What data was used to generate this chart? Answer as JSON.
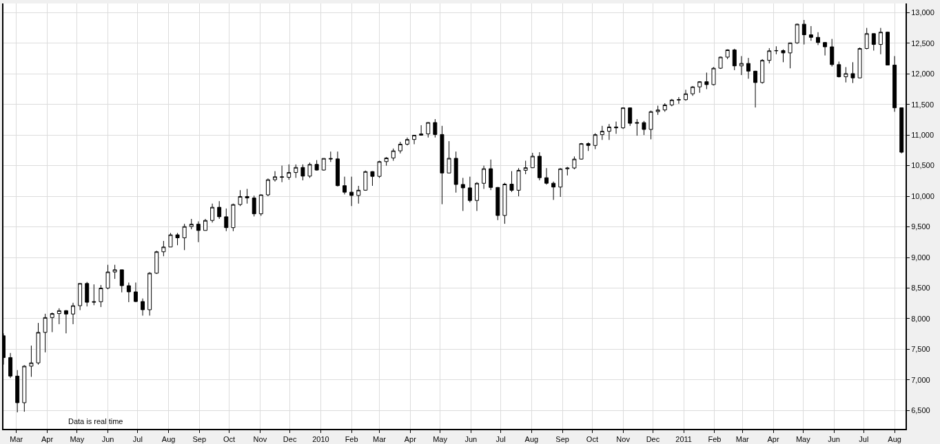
{
  "chart_data": {
    "type": "candlestick",
    "x": [
      "2009-02-16",
      "2009-02-23",
      "2009-03-02",
      "2009-03-09",
      "2009-03-16",
      "2009-03-23",
      "2009-03-30",
      "2009-04-06",
      "2009-04-13",
      "2009-04-20",
      "2009-04-27",
      "2009-05-04",
      "2009-05-11",
      "2009-05-18",
      "2009-05-25",
      "2009-06-01",
      "2009-06-08",
      "2009-06-15",
      "2009-06-22",
      "2009-06-29",
      "2009-07-06",
      "2009-07-13",
      "2009-07-20",
      "2009-07-27",
      "2009-08-03",
      "2009-08-10",
      "2009-08-17",
      "2009-08-24",
      "2009-08-31",
      "2009-09-07",
      "2009-09-14",
      "2009-09-21",
      "2009-09-28",
      "2009-10-05",
      "2009-10-12",
      "2009-10-19",
      "2009-10-26",
      "2009-11-02",
      "2009-11-09",
      "2009-11-16",
      "2009-11-23",
      "2009-11-30",
      "2009-12-07",
      "2009-12-14",
      "2009-12-21",
      "2009-12-28",
      "2010-01-04",
      "2010-01-11",
      "2010-01-18",
      "2010-01-25",
      "2010-02-01",
      "2010-02-08",
      "2010-02-15",
      "2010-02-22",
      "2010-03-01",
      "2010-03-08",
      "2010-03-15",
      "2010-03-22",
      "2010-03-29",
      "2010-04-05",
      "2010-04-12",
      "2010-04-19",
      "2010-04-26",
      "2010-05-03",
      "2010-05-10",
      "2010-05-17",
      "2010-05-24",
      "2010-05-31",
      "2010-06-07",
      "2010-06-14",
      "2010-06-21",
      "2010-06-28",
      "2010-07-05",
      "2010-07-12",
      "2010-07-19",
      "2010-07-26",
      "2010-08-02",
      "2010-08-09",
      "2010-08-16",
      "2010-08-23",
      "2010-08-30",
      "2010-09-06",
      "2010-09-13",
      "2010-09-20",
      "2010-09-27",
      "2010-10-04",
      "2010-10-11",
      "2010-10-18",
      "2010-10-25",
      "2010-11-01",
      "2010-11-08",
      "2010-11-15",
      "2010-11-22",
      "2010-11-29",
      "2010-12-06",
      "2010-12-13",
      "2010-12-20",
      "2010-12-27",
      "2011-01-03",
      "2011-01-10",
      "2011-01-17",
      "2011-01-24",
      "2011-01-31",
      "2011-02-07",
      "2011-02-14",
      "2011-02-21",
      "2011-02-28",
      "2011-03-07",
      "2011-03-14",
      "2011-03-21",
      "2011-03-28",
      "2011-04-04",
      "2011-04-11",
      "2011-04-18",
      "2011-04-25",
      "2011-05-02",
      "2011-05-09",
      "2011-05-16",
      "2011-05-23",
      "2011-05-30",
      "2011-06-06",
      "2011-06-13",
      "2011-06-20",
      "2011-06-27",
      "2011-07-04",
      "2011-07-11",
      "2011-07-18",
      "2011-07-25",
      "2011-08-01",
      "2011-08-08"
    ],
    "ohlc": [
      [
        7720,
        7760,
        7250,
        7365
      ],
      [
        7365,
        7440,
        7030,
        7062
      ],
      [
        7062,
        7160,
        6470,
        6627
      ],
      [
        6627,
        7240,
        6480,
        7224
      ],
      [
        7224,
        7560,
        7050,
        7278
      ],
      [
        7278,
        7930,
        7250,
        7776
      ],
      [
        7776,
        8080,
        7450,
        8018
      ],
      [
        8018,
        8100,
        7780,
        8083
      ],
      [
        8083,
        8170,
        7910,
        8131
      ],
      [
        8131,
        8140,
        7760,
        8076
      ],
      [
        8076,
        8260,
        7910,
        8212
      ],
      [
        8212,
        8580,
        8140,
        8575
      ],
      [
        8575,
        8600,
        8200,
        8268
      ],
      [
        8268,
        8560,
        8220,
        8277
      ],
      [
        8277,
        8550,
        8190,
        8500
      ],
      [
        8500,
        8880,
        8480,
        8763
      ],
      [
        8763,
        8880,
        8650,
        8799
      ],
      [
        8799,
        8800,
        8430,
        8539
      ],
      [
        8539,
        8590,
        8270,
        8438
      ],
      [
        8438,
        8590,
        8270,
        8280
      ],
      [
        8280,
        8330,
        8050,
        8146
      ],
      [
        8146,
        8760,
        8050,
        8743
      ],
      [
        8743,
        9110,
        8730,
        9093
      ],
      [
        9093,
        9270,
        9020,
        9171
      ],
      [
        9171,
        9400,
        9170,
        9370
      ],
      [
        9370,
        9400,
        9200,
        9321
      ],
      [
        9321,
        9550,
        9120,
        9505
      ],
      [
        9505,
        9630,
        9460,
        9544
      ],
      [
        9544,
        9590,
        9250,
        9441
      ],
      [
        9441,
        9630,
        9440,
        9605
      ],
      [
        9605,
        9880,
        9570,
        9820
      ],
      [
        9820,
        9920,
        9630,
        9665
      ],
      [
        9665,
        9800,
        9430,
        9487
      ],
      [
        9487,
        9880,
        9430,
        9865
      ],
      [
        9865,
        10100,
        9840,
        9996
      ],
      [
        9996,
        10120,
        9880,
        9972
      ],
      [
        9972,
        10010,
        9670,
        9713
      ],
      [
        9713,
        10030,
        9680,
        10023
      ],
      [
        10023,
        10290,
        10000,
        10270
      ],
      [
        10270,
        10410,
        10240,
        10318
      ],
      [
        10318,
        10500,
        10230,
        10310
      ],
      [
        10310,
        10520,
        10270,
        10388
      ],
      [
        10388,
        10520,
        10300,
        10471
      ],
      [
        10471,
        10520,
        10260,
        10329
      ],
      [
        10329,
        10550,
        10300,
        10520
      ],
      [
        10520,
        10590,
        10420,
        10428
      ],
      [
        10428,
        10620,
        10420,
        10618
      ],
      [
        10618,
        10730,
        10560,
        10610
      ],
      [
        10610,
        10730,
        10160,
        10173
      ],
      [
        10173,
        10320,
        10030,
        10067
      ],
      [
        10067,
        10320,
        9840,
        10013
      ],
      [
        10013,
        10170,
        9880,
        10099
      ],
      [
        10099,
        10420,
        10090,
        10403
      ],
      [
        10403,
        10410,
        10170,
        10325
      ],
      [
        10325,
        10580,
        10300,
        10566
      ],
      [
        10566,
        10640,
        10500,
        10625
      ],
      [
        10625,
        10780,
        10580,
        10742
      ],
      [
        10742,
        10890,
        10700,
        10851
      ],
      [
        10851,
        10960,
        10830,
        10927
      ],
      [
        10927,
        11000,
        10850,
        10997
      ],
      [
        10997,
        11160,
        10990,
        11019
      ],
      [
        11019,
        11210,
        10960,
        11204
      ],
      [
        11204,
        11260,
        10960,
        11009
      ],
      [
        11009,
        11150,
        9870,
        10380
      ],
      [
        10380,
        10900,
        10380,
        10620
      ],
      [
        10620,
        10730,
        10060,
        10193
      ],
      [
        10193,
        10300,
        9760,
        10137
      ],
      [
        10137,
        10320,
        9900,
        9931
      ],
      [
        9931,
        10230,
        9760,
        10212
      ],
      [
        10212,
        10500,
        10120,
        10450
      ],
      [
        10450,
        10600,
        10100,
        10144
      ],
      [
        10144,
        10150,
        9610,
        9686
      ],
      [
        9686,
        10220,
        9550,
        10198
      ],
      [
        10198,
        10410,
        10070,
        10098
      ],
      [
        10098,
        10460,
        10000,
        10424
      ],
      [
        10424,
        10580,
        10360,
        10466
      ],
      [
        10466,
        10710,
        10460,
        10654
      ],
      [
        10654,
        10720,
        10260,
        10303
      ],
      [
        10303,
        10460,
        10190,
        10213
      ],
      [
        10213,
        10240,
        9940,
        10150
      ],
      [
        10150,
        10460,
        9990,
        10448
      ],
      [
        10448,
        10480,
        10340,
        10462
      ],
      [
        10462,
        10650,
        10440,
        10607
      ],
      [
        10607,
        10870,
        10600,
        10860
      ],
      [
        10860,
        10880,
        10740,
        10830
      ],
      [
        10830,
        11030,
        10770,
        11006
      ],
      [
        11006,
        11150,
        10920,
        11062
      ],
      [
        11062,
        11180,
        10920,
        11132
      ],
      [
        11132,
        11220,
        11020,
        11118
      ],
      [
        11118,
        11450,
        11100,
        11444
      ],
      [
        11444,
        11450,
        11150,
        11192
      ],
      [
        11192,
        11260,
        10990,
        11203
      ],
      [
        11203,
        11230,
        11000,
        11092
      ],
      [
        11092,
        11400,
        10930,
        11382
      ],
      [
        11382,
        11480,
        11330,
        11410
      ],
      [
        11410,
        11520,
        11380,
        11491
      ],
      [
        11491,
        11590,
        11470,
        11573
      ],
      [
        11573,
        11620,
        11510,
        11578
      ],
      [
        11578,
        11740,
        11560,
        11674
      ],
      [
        11674,
        11800,
        11640,
        11787
      ],
      [
        11787,
        11880,
        11690,
        11871
      ],
      [
        11871,
        12020,
        11750,
        11824
      ],
      [
        11824,
        12110,
        11810,
        12092
      ],
      [
        12092,
        12280,
        12080,
        12273
      ],
      [
        12273,
        12400,
        12240,
        12391
      ],
      [
        12391,
        12410,
        12060,
        12130
      ],
      [
        12130,
        12290,
        11980,
        12170
      ],
      [
        12170,
        12260,
        11920,
        12044
      ],
      [
        12044,
        12050,
        11450,
        11858
      ],
      [
        11858,
        12240,
        11840,
        12220
      ],
      [
        12220,
        12420,
        12170,
        12376
      ],
      [
        12376,
        12450,
        12320,
        12380
      ],
      [
        12380,
        12400,
        12190,
        12342
      ],
      [
        12342,
        12510,
        12090,
        12506
      ],
      [
        12506,
        12820,
        12490,
        12811
      ],
      [
        12811,
        12880,
        12480,
        12638
      ],
      [
        12638,
        12780,
        12540,
        12596
      ],
      [
        12596,
        12680,
        12470,
        12512
      ],
      [
        12512,
        12520,
        12300,
        12441
      ],
      [
        12441,
        12570,
        12120,
        12151
      ],
      [
        12151,
        12200,
        11940,
        11952
      ],
      [
        11952,
        12110,
        11860,
        12004
      ],
      [
        12004,
        12190,
        11850,
        11934
      ],
      [
        11934,
        12430,
        11930,
        12414
      ],
      [
        12414,
        12750,
        12400,
        12657
      ],
      [
        12657,
        12660,
        12380,
        12480
      ],
      [
        12480,
        12750,
        12320,
        12681
      ],
      [
        12681,
        12690,
        12140,
        12143
      ],
      [
        12143,
        12290,
        11380,
        11445
      ],
      [
        11445,
        11445,
        10700,
        10720
      ]
    ],
    "color": "#000000",
    "xlim": [
      "2009-02-16",
      "2011-08-12"
    ],
    "xticks": [
      {
        "value": "2009-03-01",
        "label": "Mar"
      },
      {
        "value": "2009-04-01",
        "label": "Apr"
      },
      {
        "value": "2009-05-01",
        "label": "May"
      },
      {
        "value": "2009-06-01",
        "label": "Jun"
      },
      {
        "value": "2009-07-01",
        "label": "Jul"
      },
      {
        "value": "2009-08-01",
        "label": "Aug"
      },
      {
        "value": "2009-09-01",
        "label": "Sep"
      },
      {
        "value": "2009-10-01",
        "label": "Oct"
      },
      {
        "value": "2009-11-01",
        "label": "Nov"
      },
      {
        "value": "2009-12-01",
        "label": "Dec"
      },
      {
        "value": "2010-01-01",
        "label": "2010"
      },
      {
        "value": "2010-02-01",
        "label": "Feb"
      },
      {
        "value": "2010-03-01",
        "label": "Mar"
      },
      {
        "value": "2010-04-01",
        "label": "Apr"
      },
      {
        "value": "2010-05-01",
        "label": "May"
      },
      {
        "value": "2010-06-01",
        "label": "Jun"
      },
      {
        "value": "2010-07-01",
        "label": "Jul"
      },
      {
        "value": "2010-08-01",
        "label": "Aug"
      },
      {
        "value": "2010-09-01",
        "label": "Sep"
      },
      {
        "value": "2010-10-01",
        "label": "Oct"
      },
      {
        "value": "2010-11-01",
        "label": "Nov"
      },
      {
        "value": "2010-12-01",
        "label": "Dec"
      },
      {
        "value": "2011-01-01",
        "label": "2011"
      },
      {
        "value": "2011-02-01",
        "label": "Feb"
      },
      {
        "value": "2011-03-01",
        "label": "Mar"
      },
      {
        "value": "2011-04-01",
        "label": "Apr"
      },
      {
        "value": "2011-05-01",
        "label": "May"
      },
      {
        "value": "2011-06-01",
        "label": "Jun"
      },
      {
        "value": "2011-07-01",
        "label": "Jul"
      },
      {
        "value": "2011-08-01",
        "label": "Aug"
      }
    ],
    "ylim": [
      6200,
      13150
    ],
    "yticks": [
      {
        "value": 6500,
        "label": "6,500"
      },
      {
        "value": 7000,
        "label": "7,000"
      },
      {
        "value": 7500,
        "label": "7,500"
      },
      {
        "value": 8000,
        "label": "8,000"
      },
      {
        "value": 8500,
        "label": "8,500"
      },
      {
        "value": 9000,
        "label": "9,000"
      },
      {
        "value": 9500,
        "label": "9,500"
      },
      {
        "value": 10000,
        "label": "10,000"
      },
      {
        "value": 10500,
        "label": "10,500"
      },
      {
        "value": 11000,
        "label": "11,000"
      },
      {
        "value": 11500,
        "label": "11,500"
      },
      {
        "value": 12000,
        "label": "12,000"
      },
      {
        "value": 12500,
        "label": "12,500"
      },
      {
        "value": 13000,
        "label": "13,000"
      }
    ],
    "grid": true,
    "annotations": [
      "Data is real time"
    ]
  }
}
